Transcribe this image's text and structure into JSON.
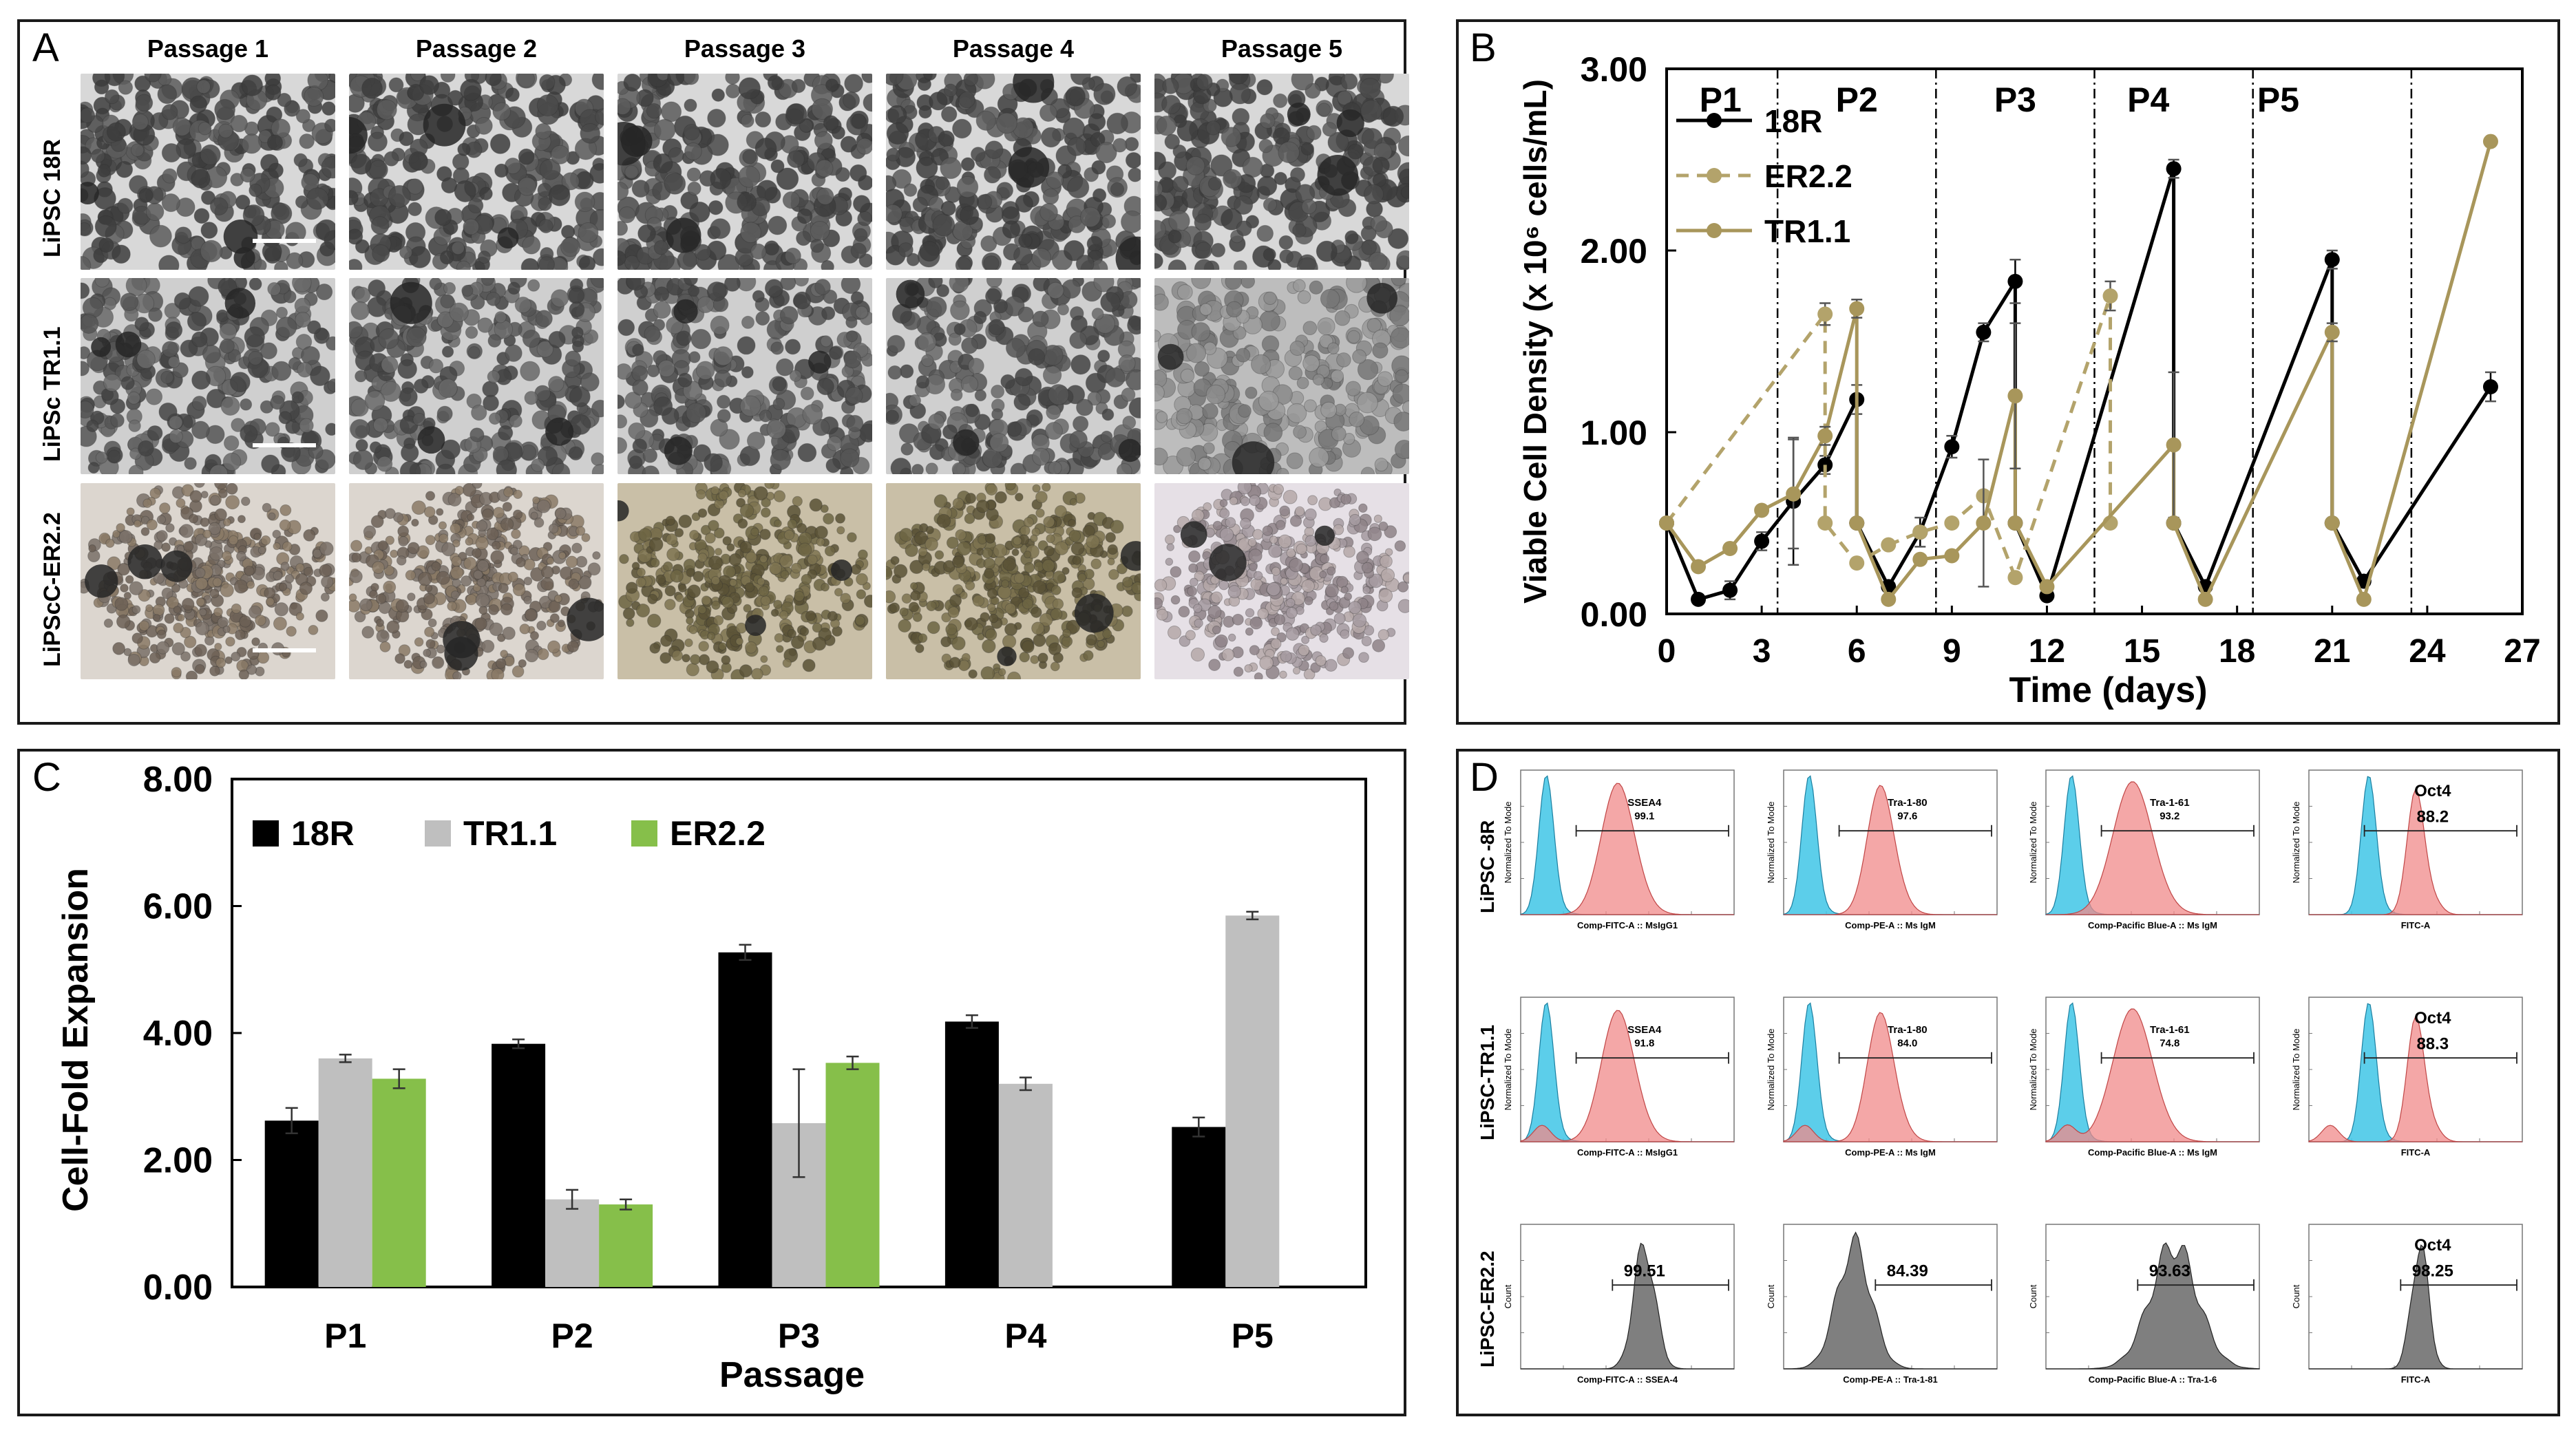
{
  "panelA": {
    "label": "A",
    "columns": [
      "Passage 1",
      "Passage 2",
      "Passage 3",
      "Passage 4",
      "Passage 5"
    ],
    "rows": [
      "LiPSC 18R",
      "LiPSc TR1.1",
      "LiPScC-ER2.2"
    ]
  },
  "panelB": {
    "label": "B",
    "passages": [
      "P1",
      "P2",
      "P3",
      "P4",
      "P5"
    ],
    "passage_boundaries_days": [
      3.5,
      8.5,
      13.5,
      18.5,
      23.5
    ],
    "legend": [
      "18R",
      "ER2.2",
      "TR1.1"
    ],
    "colors": {
      "18R": "#000000",
      "ER2.2": "#b3a36b",
      "TR1.1": "#a8965b"
    }
  },
  "panelC": {
    "label": "C"
  },
  "panelD": {
    "label": "D",
    "rows": [
      "LiPSC -8R",
      "LiPSC-TR1.1",
      "LiPSC-ER2.2"
    ],
    "ylabel_norm": "Normalized To Mode",
    "ylabel_count": "Count",
    "cells": [
      [
        {
          "marker": "SSEA4",
          "value": "99.1",
          "xlabel": "Comp-FITC-A :: MsIgG1",
          "type": "overlay"
        },
        {
          "marker": "Tra-1-80",
          "value": "97.6",
          "xlabel": "Comp-PE-A :: Ms IgM",
          "type": "overlay"
        },
        {
          "marker": "Tra-1-61",
          "value": "93.2",
          "xlabel": "Comp-Pacific Blue-A :: Ms IgM",
          "type": "overlay"
        },
        {
          "marker": "Oct4",
          "value": "88.2",
          "xlabel": "FITC-A",
          "type": "overlay"
        }
      ],
      [
        {
          "marker": "SSEA4",
          "value": "91.8",
          "xlabel": "Comp-FITC-A :: MsIgG1",
          "type": "overlay"
        },
        {
          "marker": "Tra-1-80",
          "value": "84.0",
          "xlabel": "Comp-PE-A :: Ms IgM",
          "type": "overlay"
        },
        {
          "marker": "Tra-1-61",
          "value": "74.8",
          "xlabel": "Comp-Pacific Blue-A :: Ms IgM",
          "type": "overlay"
        },
        {
          "marker": "Oct4",
          "value": "88.3",
          "xlabel": "FITC-A",
          "type": "overlay"
        }
      ],
      [
        {
          "marker": "",
          "value": "99.51",
          "xlabel": "Comp-FITC-A :: SSEA-4",
          "type": "gray"
        },
        {
          "marker": "",
          "value": "84.39",
          "xlabel": "Comp-PE-A :: Tra-1-81",
          "type": "gray"
        },
        {
          "marker": "",
          "value": "93.63",
          "xlabel": "Comp-Pacific Blue-A :: Tra-1-6",
          "type": "gray"
        },
        {
          "marker": "Oct4",
          "value": "98.25",
          "xlabel": "FITC-A",
          "type": "gray"
        }
      ]
    ]
  },
  "chart_data": [
    {
      "id": "B",
      "type": "line",
      "title": "",
      "xlabel": "Time (days)",
      "ylabel": "Viable Cell Density (x 10⁶ cells/mL)",
      "xlim": [
        0,
        27
      ],
      "ylim": [
        0,
        3
      ],
      "xticks": [
        0,
        3,
        6,
        9,
        12,
        15,
        18,
        21,
        24,
        27
      ],
      "yticks": [
        0,
        1,
        2,
        3
      ],
      "ytick_labels": [
        "0.00",
        "1.00",
        "2.00",
        "3.00"
      ],
      "legend_position": "top-left",
      "series": [
        {
          "name": "18R",
          "style": "solid",
          "points": [
            [
              0,
              0.5
            ],
            [
              1,
              0.08
            ],
            [
              2,
              0.13
            ],
            [
              3,
              0.4
            ],
            [
              4,
              0.62
            ],
            [
              5,
              0.82
            ],
            [
              6,
              1.18
            ],
            [
              6,
              0.5
            ],
            [
              7,
              0.15
            ],
            [
              8,
              0.45
            ],
            [
              9,
              0.92
            ],
            [
              10,
              1.55
            ],
            [
              11,
              1.83
            ],
            [
              11,
              0.5
            ],
            [
              12,
              0.1
            ],
            [
              16,
              2.45
            ],
            [
              16,
              0.5
            ],
            [
              17,
              0.15
            ],
            [
              21,
              1.95
            ],
            [
              21,
              0.5
            ],
            [
              22,
              0.18
            ],
            [
              26,
              1.25
            ]
          ],
          "errors": [
            0,
            0,
            0.05,
            0.05,
            0.35,
            0.05,
            0.08,
            0,
            0,
            0.08,
            0.06,
            0.05,
            0.12,
            0,
            0,
            0.05,
            0,
            0,
            0.05,
            0,
            0,
            0.08
          ]
        },
        {
          "name": "ER2.2",
          "style": "dashed",
          "points": [
            [
              0,
              0.5
            ],
            [
              5,
              1.65
            ],
            [
              5,
              0.5
            ],
            [
              6,
              0.28
            ],
            [
              7,
              0.38
            ],
            [
              8,
              0.45
            ],
            [
              9,
              0.5
            ],
            [
              10,
              0.65
            ],
            [
              11,
              0.2
            ],
            [
              14,
              1.75
            ],
            [
              14,
              0.5
            ]
          ],
          "errors": [
            0,
            0.06,
            0,
            0,
            0,
            0,
            0,
            0,
            0,
            0.08,
            0
          ]
        },
        {
          "name": "TR1.1",
          "style": "solid",
          "points": [
            [
              0,
              0.5
            ],
            [
              1,
              0.26
            ],
            [
              2,
              0.36
            ],
            [
              3,
              0.57
            ],
            [
              4,
              0.66
            ],
            [
              5,
              0.98
            ],
            [
              6,
              1.68
            ],
            [
              6,
              0.5
            ],
            [
              7,
              0.08
            ],
            [
              8,
              0.3
            ],
            [
              9,
              0.32
            ],
            [
              10,
              0.5
            ],
            [
              11,
              1.2
            ],
            [
              11,
              0.5
            ],
            [
              12,
              0.15
            ],
            [
              16,
              0.93
            ],
            [
              16,
              0.5
            ],
            [
              17,
              0.08
            ],
            [
              21,
              1.55
            ],
            [
              21,
              0.5
            ],
            [
              22,
              0.08
            ],
            [
              26,
              2.6
            ]
          ],
          "errors": [
            0,
            0,
            0,
            0,
            0.3,
            0.05,
            0.05,
            0,
            0,
            0,
            0,
            0.35,
            0.4,
            0,
            0,
            0.4,
            0,
            0,
            0.05,
            0,
            0,
            0
          ]
        }
      ]
    },
    {
      "id": "C",
      "type": "bar",
      "title": "",
      "xlabel": "Passage",
      "ylabel": "Cell-Fold Expansion",
      "categories": [
        "P1",
        "P2",
        "P3",
        "P4",
        "P5"
      ],
      "ylim": [
        0,
        8
      ],
      "yticks": [
        0,
        2,
        4,
        6,
        8
      ],
      "ytick_labels": [
        "0.00",
        "2.00",
        "4.00",
        "6.00",
        "8.00"
      ],
      "legend_position": "top-left",
      "series": [
        {
          "name": "18R",
          "color": "#000000",
          "values": [
            2.62,
            3.83,
            5.27,
            4.18,
            2.52
          ],
          "errors": [
            0.2,
            0.07,
            0.12,
            0.1,
            0.15
          ]
        },
        {
          "name": "TR1.1",
          "color": "#bfbfbf",
          "values": [
            3.6,
            1.38,
            2.58,
            3.2,
            5.85
          ],
          "errors": [
            0.06,
            0.15,
            0.85,
            0.1,
            0.06
          ]
        },
        {
          "name": "ER2.2",
          "color": "#86bf4a",
          "values": [
            3.28,
            1.3,
            3.53,
            null,
            null
          ],
          "errors": [
            0.15,
            0.08,
            0.1,
            null,
            null
          ]
        }
      ]
    }
  ]
}
